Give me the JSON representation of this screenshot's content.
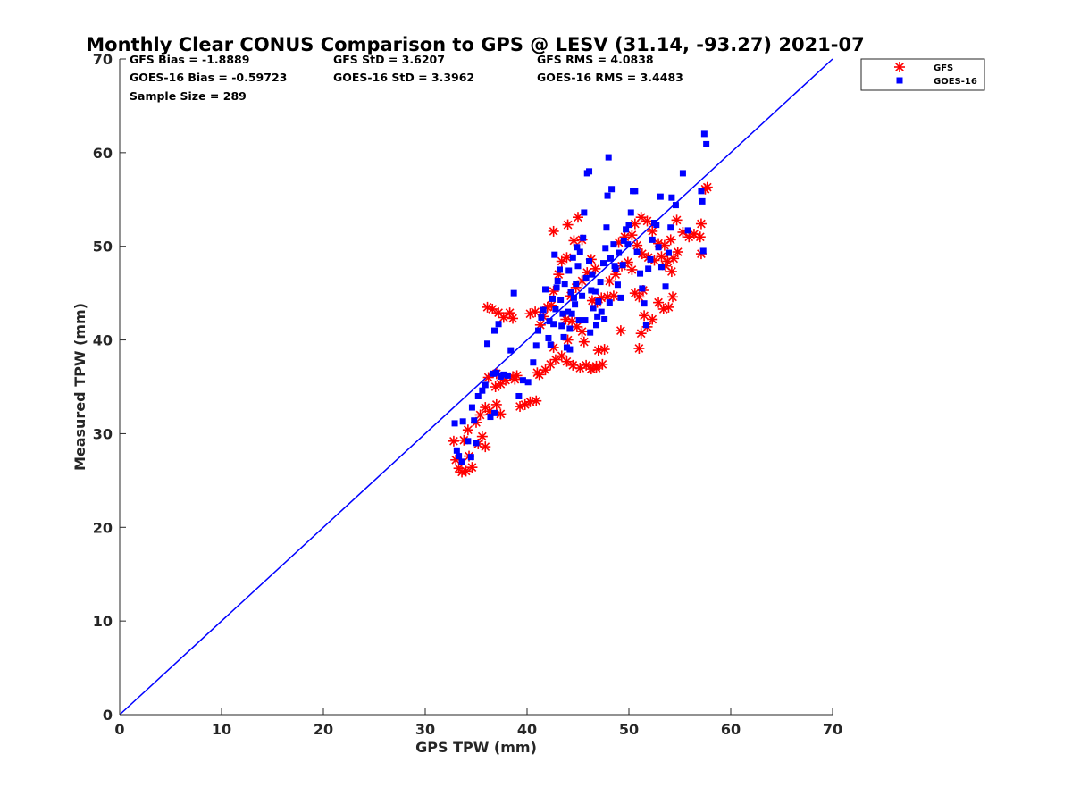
{
  "chart_data": {
    "type": "scatter",
    "title": "Monthly Clear CONUS Comparison to GPS @ LESV (31.14, -93.27) 2021-07",
    "xlabel": "GPS TPW (mm)",
    "ylabel": "Measured TPW (mm)",
    "xlim": [
      0,
      70
    ],
    "ylim": [
      0,
      70
    ],
    "xticks": [
      "0",
      "10",
      "20",
      "30",
      "40",
      "50",
      "60",
      "70"
    ],
    "yticks": [
      "0",
      "10",
      "20",
      "30",
      "40",
      "50",
      "60",
      "70"
    ],
    "grid": false,
    "legend_position": "outside-top-right",
    "reference_line": {
      "x": [
        0,
        70
      ],
      "y": [
        0,
        70
      ],
      "color": "#0000ff"
    },
    "stats": {
      "gfs_bias": "GFS Bias = -1.8889",
      "gfs_std": "GFS StD = 3.6207",
      "gfs_rms": "GFS RMS = 4.0838",
      "goes_bias": "GOES-16 Bias = -0.59723",
      "goes_std": "GOES-16 StD = 3.3962",
      "goes_rms": "GOES-16 RMS = 3.4483",
      "sample_size": "Sample Size = 289"
    },
    "series": [
      {
        "name": "GFS",
        "marker": "asterisk",
        "color": "#ff0000",
        "points": [
          [
            32.8,
            29.2
          ],
          [
            33.0,
            27.2
          ],
          [
            33.3,
            26.3
          ],
          [
            33.6,
            25.9
          ],
          [
            34.0,
            26.0
          ],
          [
            34.3,
            27.6
          ],
          [
            33.8,
            29.3
          ],
          [
            34.6,
            26.4
          ],
          [
            35.2,
            28.9
          ],
          [
            35.6,
            29.7
          ],
          [
            35.9,
            28.6
          ],
          [
            34.2,
            30.4
          ],
          [
            35.0,
            31.2
          ],
          [
            35.4,
            32.0
          ],
          [
            36.3,
            32.4
          ],
          [
            35.9,
            32.8
          ],
          [
            37.4,
            32.1
          ],
          [
            37.0,
            33.1
          ],
          [
            36.1,
            43.5
          ],
          [
            36.6,
            43.3
          ],
          [
            37.2,
            42.9
          ],
          [
            38.3,
            42.9
          ],
          [
            38.6,
            42.3
          ],
          [
            37.7,
            42.4
          ],
          [
            36.9,
            35.0
          ],
          [
            37.4,
            35.3
          ],
          [
            37.9,
            35.7
          ],
          [
            38.6,
            36.1
          ],
          [
            39.3,
            32.9
          ],
          [
            39.8,
            33.1
          ],
          [
            40.3,
            33.4
          ],
          [
            40.9,
            33.5
          ],
          [
            40.3,
            42.8
          ],
          [
            40.8,
            43.0
          ],
          [
            41.2,
            36.3
          ],
          [
            41.8,
            36.8
          ],
          [
            42.3,
            37.4
          ],
          [
            42.8,
            37.9
          ],
          [
            43.4,
            38.3
          ],
          [
            43.9,
            37.7
          ],
          [
            44.5,
            37.3
          ],
          [
            45.2,
            37.0
          ],
          [
            45.8,
            37.3
          ],
          [
            46.3,
            36.9
          ],
          [
            46.8,
            37.2
          ],
          [
            47.4,
            37.4
          ],
          [
            47.0,
            38.9
          ],
          [
            47.6,
            39.0
          ],
          [
            41.3,
            41.6
          ],
          [
            41.6,
            42.5
          ],
          [
            42.0,
            43.5
          ],
          [
            42.4,
            43.7
          ],
          [
            42.6,
            45.2
          ],
          [
            43.1,
            47.0
          ],
          [
            43.4,
            48.4
          ],
          [
            43.9,
            48.8
          ],
          [
            42.6,
            51.6
          ],
          [
            44.0,
            52.3
          ],
          [
            45.0,
            53.1
          ],
          [
            44.6,
            50.6
          ],
          [
            45.4,
            50.7
          ],
          [
            46.3,
            48.6
          ],
          [
            46.7,
            47.6
          ],
          [
            44.3,
            44.7
          ],
          [
            44.8,
            45.6
          ],
          [
            45.4,
            46.3
          ],
          [
            45.9,
            47.2
          ],
          [
            46.4,
            44.2
          ],
          [
            46.9,
            44.0
          ],
          [
            47.3,
            44.5
          ],
          [
            47.9,
            44.6
          ],
          [
            43.8,
            42.2
          ],
          [
            44.4,
            42.0
          ],
          [
            44.9,
            41.4
          ],
          [
            45.4,
            40.9
          ],
          [
            45.6,
            39.8
          ],
          [
            48.5,
            44.7
          ],
          [
            49.2,
            41.0
          ],
          [
            48.1,
            46.3
          ],
          [
            48.7,
            47.0
          ],
          [
            49.3,
            47.9
          ],
          [
            49.9,
            48.3
          ],
          [
            50.3,
            47.5
          ],
          [
            50.6,
            45.0
          ],
          [
            51.0,
            44.6
          ],
          [
            51.4,
            45.3
          ],
          [
            49.0,
            50.4
          ],
          [
            49.6,
            51.0
          ],
          [
            50.3,
            51.2
          ],
          [
            50.8,
            50.1
          ],
          [
            51.3,
            49.2
          ],
          [
            51.9,
            48.8
          ],
          [
            52.5,
            48.5
          ],
          [
            53.2,
            48.9
          ],
          [
            53.8,
            48.4
          ],
          [
            54.4,
            48.7
          ],
          [
            54.8,
            49.4
          ],
          [
            54.2,
            47.3
          ],
          [
            53.6,
            47.9
          ],
          [
            50.6,
            52.4
          ],
          [
            51.2,
            53.1
          ],
          [
            51.8,
            52.7
          ],
          [
            52.3,
            51.6
          ],
          [
            52.9,
            50.3
          ],
          [
            53.5,
            50.1
          ],
          [
            54.1,
            50.7
          ],
          [
            54.7,
            52.8
          ],
          [
            51.2,
            40.7
          ],
          [
            51.8,
            41.4
          ],
          [
            52.3,
            42.2
          ],
          [
            51.5,
            42.6
          ],
          [
            51.0,
            39.1
          ],
          [
            52.9,
            44.0
          ],
          [
            53.4,
            43.3
          ],
          [
            53.9,
            43.5
          ],
          [
            54.3,
            44.6
          ],
          [
            55.3,
            51.5
          ],
          [
            55.9,
            51.0
          ],
          [
            56.4,
            51.3
          ],
          [
            57.1,
            52.4
          ],
          [
            57.0,
            51.0
          ],
          [
            57.1,
            49.2
          ],
          [
            57.5,
            56.1
          ],
          [
            57.7,
            56.3
          ],
          [
            36.2,
            36.0
          ],
          [
            37.0,
            36.4
          ],
          [
            38.8,
            35.8
          ],
          [
            39.0,
            36.2
          ],
          [
            41.0,
            36.5
          ],
          [
            42.6,
            39.2
          ],
          [
            44.0,
            40.0
          ],
          [
            46.8,
            37.0
          ]
        ]
      },
      {
        "name": "GOES-16",
        "marker": "square",
        "color": "#0000ff",
        "points": [
          [
            32.9,
            31.1
          ],
          [
            33.1,
            28.2
          ],
          [
            33.3,
            27.6
          ],
          [
            33.6,
            27.0
          ],
          [
            33.7,
            31.3
          ],
          [
            34.2,
            29.2
          ],
          [
            34.5,
            27.5
          ],
          [
            35.0,
            29.0
          ],
          [
            34.6,
            32.8
          ],
          [
            34.8,
            31.4
          ],
          [
            35.2,
            34.0
          ],
          [
            35.6,
            34.6
          ],
          [
            35.9,
            35.2
          ],
          [
            36.1,
            39.6
          ],
          [
            36.4,
            31.8
          ],
          [
            36.8,
            32.2
          ],
          [
            36.7,
            36.4
          ],
          [
            37.0,
            36.5
          ],
          [
            37.4,
            36.1
          ],
          [
            37.7,
            36.3
          ],
          [
            37.2,
            41.7
          ],
          [
            36.8,
            41.0
          ],
          [
            38.1,
            36.2
          ],
          [
            38.4,
            38.9
          ],
          [
            38.7,
            45.0
          ],
          [
            39.2,
            34.0
          ],
          [
            39.6,
            35.7
          ],
          [
            40.1,
            35.5
          ],
          [
            40.6,
            37.6
          ],
          [
            40.9,
            39.4
          ],
          [
            41.1,
            41.0
          ],
          [
            41.4,
            42.4
          ],
          [
            41.6,
            43.2
          ],
          [
            41.8,
            45.4
          ],
          [
            42.1,
            40.2
          ],
          [
            42.3,
            39.5
          ],
          [
            42.6,
            41.7
          ],
          [
            42.8,
            43.3
          ],
          [
            43.0,
            46.3
          ],
          [
            43.2,
            47.5
          ],
          [
            42.7,
            49.1
          ],
          [
            43.4,
            41.5
          ],
          [
            43.6,
            40.3
          ],
          [
            43.9,
            39.2
          ],
          [
            44.2,
            39.0
          ],
          [
            44.4,
            42.8
          ],
          [
            44.6,
            44.5
          ],
          [
            44.8,
            46.0
          ],
          [
            45.0,
            47.9
          ],
          [
            45.2,
            49.4
          ],
          [
            45.5,
            50.9
          ],
          [
            45.6,
            53.6
          ],
          [
            45.9,
            57.8
          ],
          [
            46.1,
            58.0
          ],
          [
            46.3,
            45.3
          ],
          [
            46.5,
            43.4
          ],
          [
            46.8,
            41.6
          ],
          [
            47.0,
            44.1
          ],
          [
            47.2,
            46.2
          ],
          [
            47.5,
            48.2
          ],
          [
            47.7,
            49.8
          ],
          [
            47.8,
            52.0
          ],
          [
            47.9,
            55.4
          ],
          [
            48.0,
            59.5
          ],
          [
            48.3,
            56.1
          ],
          [
            48.5,
            50.2
          ],
          [
            48.7,
            47.6
          ],
          [
            48.9,
            45.9
          ],
          [
            49.2,
            44.5
          ],
          [
            49.5,
            50.6
          ],
          [
            49.7,
            51.8
          ],
          [
            50.0,
            52.3
          ],
          [
            50.2,
            53.6
          ],
          [
            50.4,
            55.9
          ],
          [
            50.6,
            55.9
          ],
          [
            50.8,
            49.4
          ],
          [
            51.1,
            47.1
          ],
          [
            51.3,
            45.5
          ],
          [
            51.5,
            43.9
          ],
          [
            51.7,
            41.6
          ],
          [
            51.9,
            47.6
          ],
          [
            52.1,
            48.6
          ],
          [
            52.3,
            50.7
          ],
          [
            52.5,
            52.5
          ],
          [
            52.7,
            52.3
          ],
          [
            52.9,
            49.9
          ],
          [
            53.2,
            47.8
          ],
          [
            53.6,
            45.7
          ],
          [
            53.9,
            49.3
          ],
          [
            54.1,
            52.0
          ],
          [
            54.2,
            55.2
          ],
          [
            54.6,
            54.4
          ],
          [
            55.3,
            57.8
          ],
          [
            55.8,
            51.7
          ],
          [
            57.1,
            55.9
          ],
          [
            57.2,
            54.8
          ],
          [
            57.3,
            49.5
          ],
          [
            57.4,
            62.0
          ],
          [
            57.6,
            60.9
          ],
          [
            53.1,
            55.3
          ],
          [
            44.0,
            43.0
          ],
          [
            44.3,
            45.1
          ],
          [
            44.7,
            43.8
          ],
          [
            45.1,
            42.1
          ],
          [
            45.4,
            44.7
          ],
          [
            45.8,
            46.6
          ],
          [
            46.1,
            48.4
          ],
          [
            46.4,
            47.0
          ],
          [
            46.7,
            45.2
          ],
          [
            47.3,
            43.0
          ],
          [
            43.3,
            44.3
          ],
          [
            43.7,
            46.0
          ],
          [
            44.1,
            47.4
          ],
          [
            44.5,
            48.8
          ],
          [
            44.9,
            49.9
          ],
          [
            48.2,
            48.7
          ],
          [
            48.6,
            47.9
          ],
          [
            49.0,
            49.3
          ],
          [
            49.4,
            48.0
          ],
          [
            49.9,
            50.2
          ],
          [
            42.2,
            42.0
          ],
          [
            42.5,
            44.4
          ],
          [
            42.9,
            45.6
          ],
          [
            43.5,
            42.8
          ],
          [
            44.2,
            41.2
          ],
          [
            45.7,
            42.1
          ],
          [
            46.2,
            40.8
          ],
          [
            46.9,
            42.5
          ],
          [
            47.6,
            42.2
          ],
          [
            48.1,
            44.0
          ]
        ]
      }
    ]
  }
}
